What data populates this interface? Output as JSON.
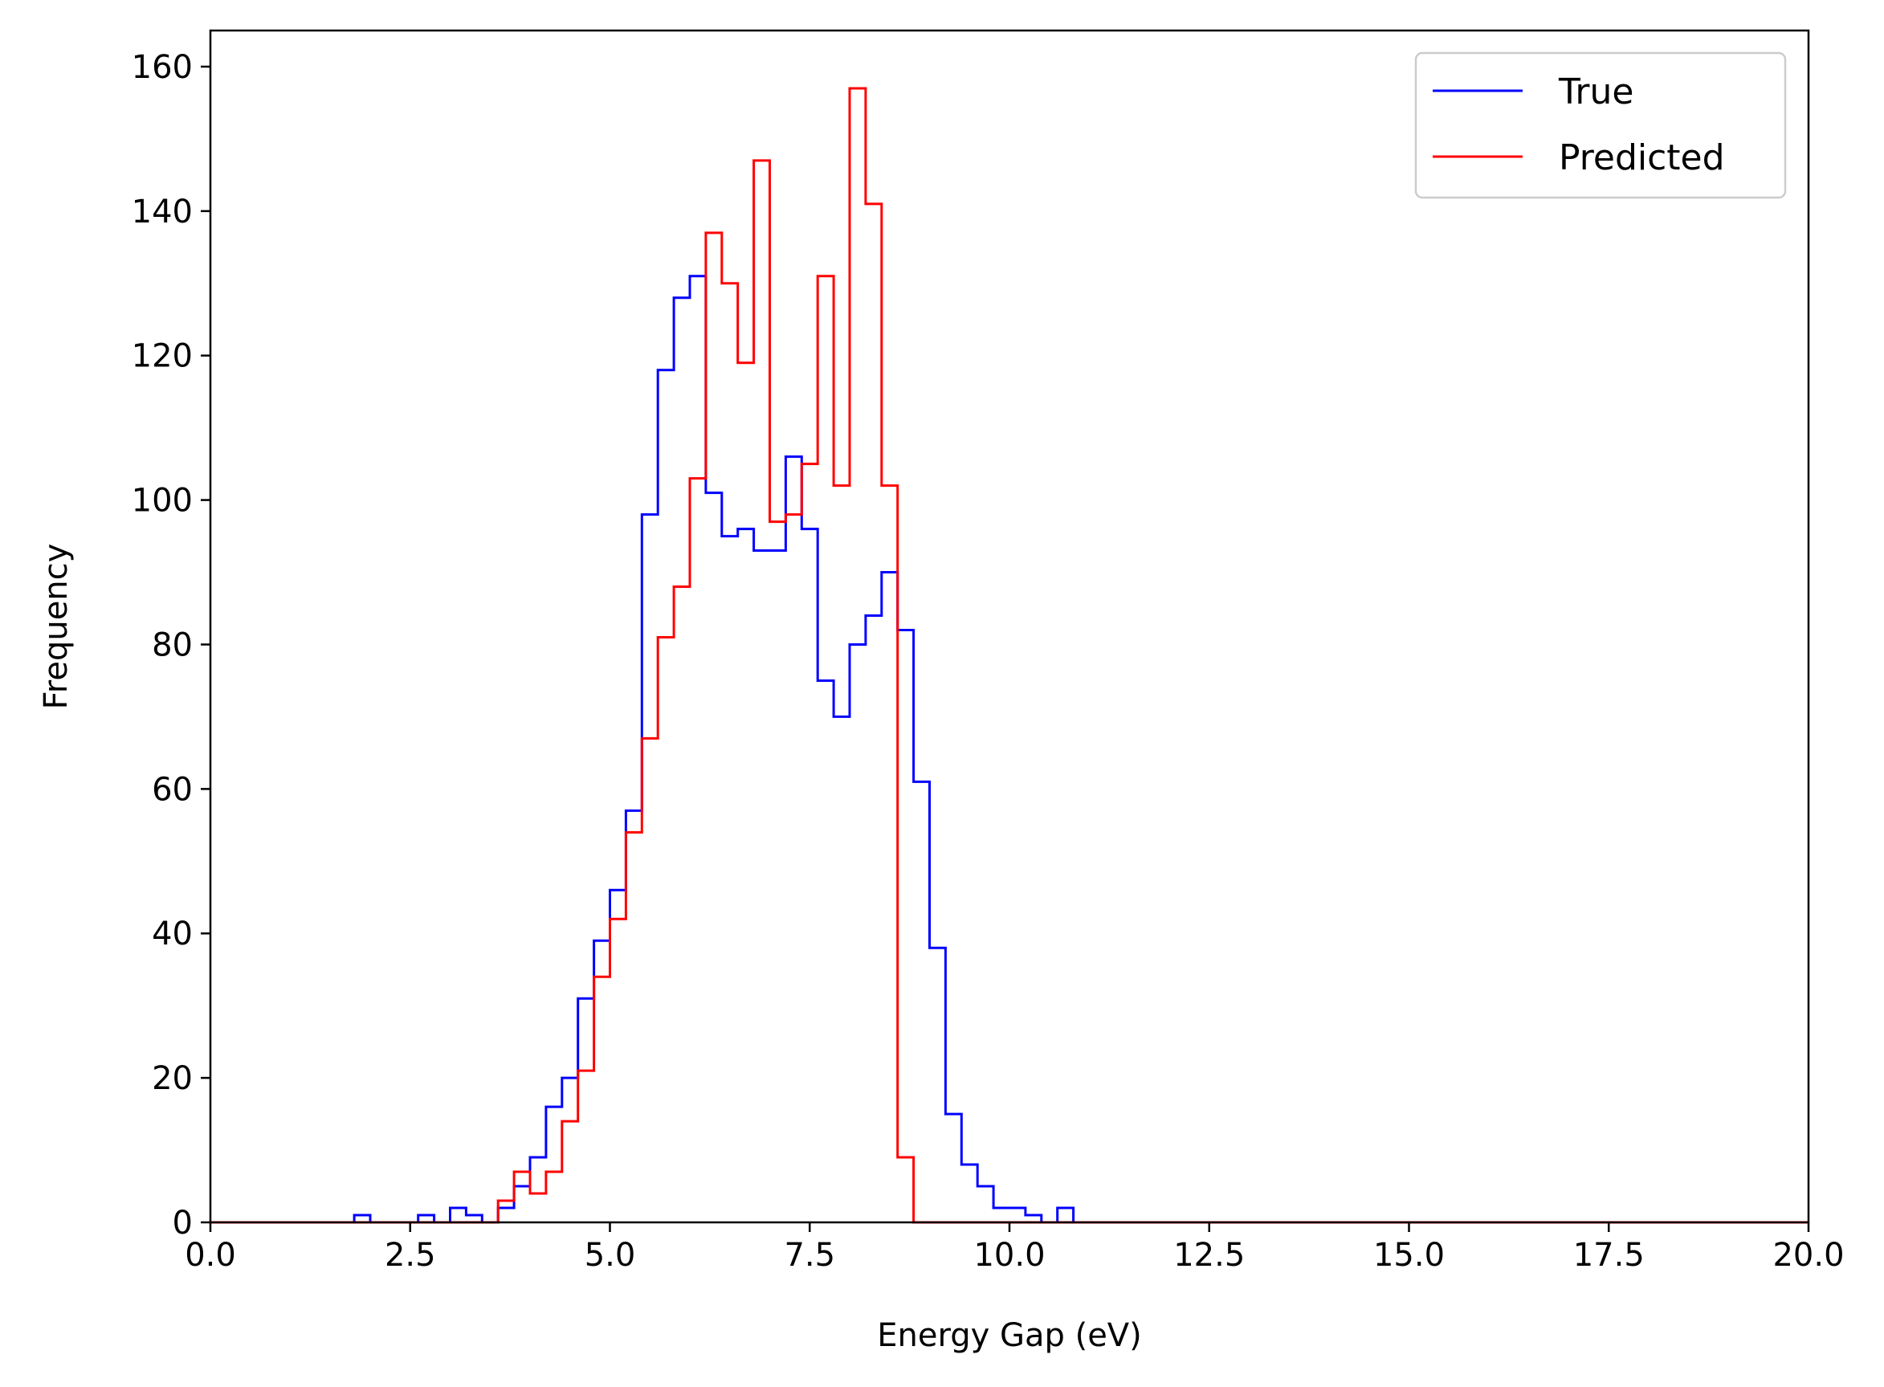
{
  "chart_data": {
    "type": "histogram",
    "xlabel": "Energy Gap (eV)",
    "ylabel": "Frequency",
    "xlim": [
      0,
      20
    ],
    "ylim": [
      0,
      165
    ],
    "xticks": [
      0,
      2.5,
      5,
      7.5,
      10,
      12.5,
      15,
      17.5,
      20
    ],
    "xtick_labels": [
      "0.0",
      "2.5",
      "5.0",
      "7.5",
      "10.0",
      "12.5",
      "15.0",
      "17.5",
      "20.0"
    ],
    "yticks": [
      0,
      20,
      40,
      60,
      80,
      100,
      120,
      140,
      160
    ],
    "ytick_labels": [
      "0",
      "20",
      "40",
      "60",
      "80",
      "100",
      "120",
      "140",
      "160"
    ],
    "grid": false,
    "legend_position": "top-right",
    "bin_edges": [
      0.0,
      0.2,
      0.4,
      0.6,
      0.8,
      1.0,
      1.2,
      1.4,
      1.6,
      1.8,
      2.0,
      2.2,
      2.4,
      2.6,
      2.8,
      3.0,
      3.2,
      3.4,
      3.6,
      3.8,
      4.0,
      4.2,
      4.4,
      4.6,
      4.8,
      5.0,
      5.2,
      5.4,
      5.6,
      5.8,
      6.0,
      6.2,
      6.4,
      6.6,
      6.8,
      7.0,
      7.2,
      7.4,
      7.6,
      7.8,
      8.0,
      8.2,
      8.4,
      8.6,
      8.8,
      9.0,
      9.2,
      9.4,
      9.6,
      9.8,
      10.0,
      10.2,
      10.4,
      10.6,
      10.8,
      11.0,
      11.2,
      11.4,
      11.6,
      11.8,
      12.0,
      12.2,
      12.4,
      12.6,
      12.8,
      13.0,
      13.2,
      13.4,
      13.6,
      13.8,
      14.0,
      14.2,
      14.4,
      14.6,
      14.8,
      15.0,
      15.2,
      15.4,
      15.6,
      15.8,
      16.0,
      16.2,
      16.4,
      16.6,
      16.8,
      17.0,
      17.2,
      17.4,
      17.6,
      17.8,
      18.0,
      18.2,
      18.4,
      18.6,
      18.8,
      19.0,
      19.2,
      19.4,
      19.6,
      19.8,
      20.0
    ],
    "series": [
      {
        "name": "True",
        "color": "#0000ff",
        "values": [
          0,
          0,
          0,
          0,
          0,
          0,
          0,
          0,
          0,
          1,
          0,
          0,
          0,
          1,
          0,
          2,
          1,
          0,
          2,
          5,
          9,
          16,
          20,
          31,
          39,
          46,
          57,
          98,
          118,
          128,
          131,
          101,
          95,
          96,
          93,
          93,
          106,
          96,
          75,
          70,
          80,
          84,
          90,
          82,
          61,
          38,
          15,
          8,
          5,
          2,
          2,
          1,
          0,
          2,
          0,
          0,
          0,
          0,
          0,
          0,
          0,
          0,
          0,
          0,
          0,
          0,
          0,
          0,
          0,
          0,
          0,
          0,
          0,
          0,
          0,
          0,
          0,
          0,
          0,
          0,
          0,
          0,
          0,
          0,
          0,
          0,
          0,
          0,
          0,
          0,
          0,
          0,
          0,
          0,
          0,
          0,
          0,
          0,
          0,
          0
        ]
      },
      {
        "name": "Predicted",
        "color": "#ff0000",
        "values": [
          0,
          0,
          0,
          0,
          0,
          0,
          0,
          0,
          0,
          0,
          0,
          0,
          0,
          0,
          0,
          0,
          0,
          0,
          3,
          7,
          4,
          7,
          14,
          21,
          34,
          42,
          54,
          67,
          81,
          88,
          103,
          137,
          130,
          119,
          147,
          97,
          98,
          105,
          131,
          102,
          157,
          141,
          102,
          9,
          0,
          0,
          0,
          0,
          0,
          0,
          0,
          0,
          0,
          0,
          0,
          0,
          0,
          0,
          0,
          0,
          0,
          0,
          0,
          0,
          0,
          0,
          0,
          0,
          0,
          0,
          0,
          0,
          0,
          0,
          0,
          0,
          0,
          0,
          0,
          0,
          0,
          0,
          0,
          0,
          0,
          0,
          0,
          0,
          0,
          0,
          0,
          0,
          0,
          0,
          0,
          0,
          0,
          0,
          0,
          0
        ]
      }
    ]
  }
}
